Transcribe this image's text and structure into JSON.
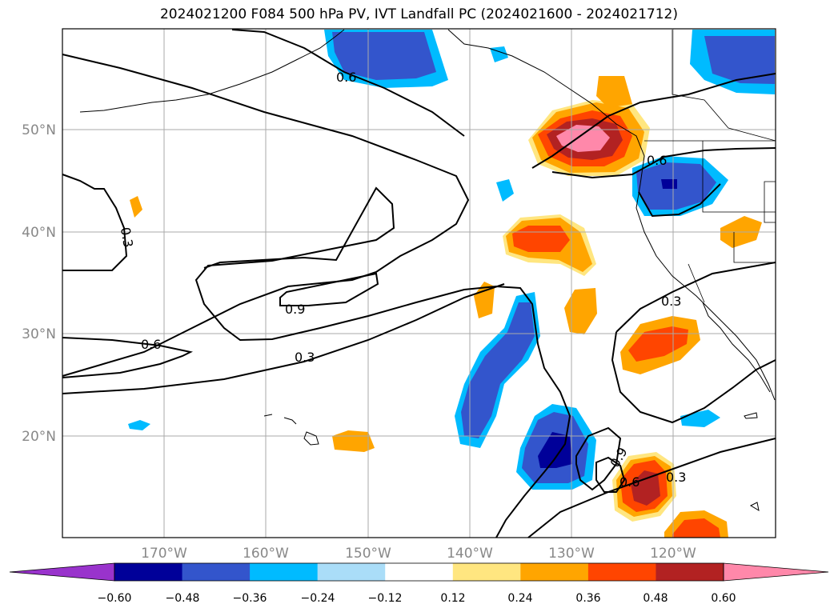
{
  "title": "2024021200 F084 500 hPa PV, IVT Landfall PC (2024021600 - 2024021712)",
  "map": {
    "lon_labels": [
      "170°W",
      "160°W",
      "150°W",
      "140°W",
      "130°W",
      "120°W"
    ],
    "lat_labels": [
      "50°N",
      "40°N",
      "30°N",
      "20°N"
    ],
    "contour_labels": [
      "0.6",
      "0.3",
      "0.9",
      "0.6",
      "0.3",
      "0.6",
      "0.3",
      "0.6",
      "0.3",
      "0.9",
      "0.6",
      "0.3"
    ],
    "grid": true
  },
  "colorbar": {
    "ticks": [
      "−0.60",
      "−0.48",
      "−0.36",
      "−0.24",
      "−0.12",
      "0.12",
      "0.24",
      "0.36",
      "0.48",
      "0.60"
    ],
    "colors": [
      "#9933cc",
      "#000099",
      "#3355cc",
      "#00bbff",
      "#aaddf8",
      "#ffffff",
      "#ffe680",
      "#ffa500",
      "#ff4500",
      "#b22222",
      "#ff88aa"
    ],
    "extend": "both"
  }
}
